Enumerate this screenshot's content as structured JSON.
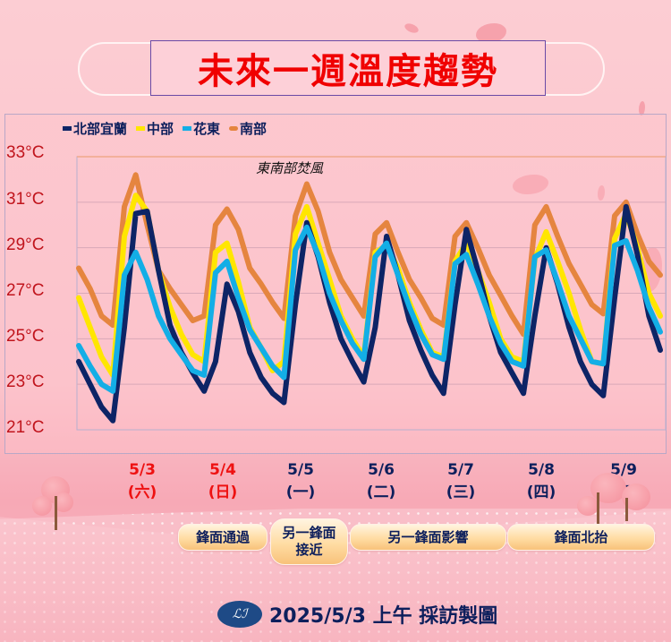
{
  "title": "未來一週溫度趨勢",
  "annotation": "東南部焚風",
  "legend": [
    {
      "label": "北部宜蘭",
      "color": "#0d2466"
    },
    {
      "label": "中部",
      "color": "#ffe600"
    },
    {
      "label": "花東",
      "color": "#13aee6"
    },
    {
      "label": "南部",
      "color": "#e5853f"
    }
  ],
  "y_ticks": [
    "33°C",
    "31°C",
    "29°C",
    "27°C",
    "25°C",
    "23°C",
    "21°C"
  ],
  "days": [
    {
      "date": "5/3",
      "weekday": "(六)",
      "color": "#ee1111"
    },
    {
      "date": "5/4",
      "weekday": "(日)",
      "color": "#ee1111"
    },
    {
      "date": "5/5",
      "weekday": "(一)",
      "color": "#0d1f5c"
    },
    {
      "date": "5/6",
      "weekday": "(二)",
      "color": "#0d1f5c"
    },
    {
      "date": "5/7",
      "weekday": "(三)",
      "color": "#0d1f5c"
    },
    {
      "date": "5/8",
      "weekday": "(四)",
      "color": "#0d1f5c"
    },
    {
      "date": "5/9",
      "weekday": "(五)",
      "color": "#0d1f5c"
    }
  ],
  "phases": [
    {
      "label": "鋒面通過"
    },
    {
      "label": "另一鋒面接近",
      "line1": "另一鋒面",
      "line2": "接近"
    },
    {
      "label": "另一鋒面影響"
    },
    {
      "label": "鋒面北抬"
    }
  ],
  "footer": {
    "logo": "ℒℐ",
    "text": "2025/5/3 上午 採訪製圖"
  },
  "chart_data": {
    "type": "line",
    "title": "未來一週溫度趨勢",
    "ylabel": "°C",
    "ylim": [
      21,
      33
    ],
    "yticks": [
      21,
      23,
      25,
      27,
      29,
      31,
      33
    ],
    "grid": true,
    "legend_position": "top-left",
    "categories": [
      "5/3(六)",
      "5/4(日)",
      "5/5(一)",
      "5/6(二)",
      "5/7(三)",
      "5/8(四)",
      "5/9(五)"
    ],
    "x_note": "3-hourly points, 8 per day (00,03,06,09,12,15,18,21)",
    "annotations": [
      {
        "text": "東南部焚風",
        "near": "5/5 peak"
      }
    ],
    "series": [
      {
        "name": "北部宜蘭",
        "color": "#0d2466",
        "values": [
          24.0,
          23.0,
          22.0,
          21.4,
          25.5,
          30.5,
          30.6,
          28.0,
          25.6,
          24.4,
          23.5,
          22.7,
          24.0,
          27.4,
          26.2,
          24.4,
          23.3,
          22.6,
          22.2,
          26.5,
          30.1,
          28.6,
          26.6,
          25.0,
          24.0,
          23.1,
          25.5,
          29.5,
          27.8,
          25.8,
          24.5,
          23.4,
          22.6,
          26.5,
          29.8,
          28.0,
          26.0,
          24.4,
          23.5,
          22.6,
          26.0,
          29.0,
          27.4,
          25.5,
          24.0,
          23.0,
          22.5,
          26.8,
          30.8,
          28.7,
          26.0,
          24.5
        ]
      },
      {
        "name": "中部",
        "color": "#ffe600",
        "values": [
          26.8,
          25.5,
          24.2,
          23.4,
          29.5,
          31.3,
          30.6,
          28.0,
          26.4,
          25.2,
          24.3,
          24.0,
          28.8,
          29.2,
          27.5,
          25.5,
          24.6,
          23.6,
          24.0,
          29.6,
          30.8,
          29.2,
          27.6,
          26.0,
          25.0,
          24.2,
          28.8,
          29.1,
          28.1,
          26.6,
          25.4,
          24.4,
          24.2,
          28.4,
          29.2,
          28.0,
          26.6,
          25.0,
          24.2,
          24.0,
          28.5,
          29.7,
          28.4,
          27.0,
          25.4,
          24.0,
          23.9,
          29.4,
          30.5,
          29.0,
          27.0,
          26.0
        ]
      },
      {
        "name": "花東",
        "color": "#13aee6",
        "values": [
          24.7,
          23.8,
          23.0,
          22.7,
          27.8,
          28.8,
          27.6,
          26.0,
          25.0,
          24.3,
          23.6,
          23.4,
          27.9,
          28.4,
          26.8,
          25.4,
          24.6,
          23.8,
          23.3,
          28.9,
          29.9,
          28.7,
          27.0,
          25.8,
          24.8,
          24.1,
          28.6,
          29.2,
          27.8,
          26.4,
          25.2,
          24.3,
          24.1,
          28.3,
          28.7,
          27.4,
          26.0,
          24.8,
          24.0,
          23.8,
          28.6,
          28.9,
          27.5,
          26.0,
          25.0,
          24.0,
          23.9,
          29.1,
          29.3,
          28.0,
          26.4,
          25.3
        ]
      },
      {
        "name": "南部",
        "color": "#e5853f",
        "values": [
          28.1,
          27.2,
          26.0,
          25.6,
          30.8,
          32.2,
          30.0,
          28.0,
          27.2,
          26.5,
          25.8,
          26.0,
          30.0,
          30.7,
          29.8,
          28.1,
          27.4,
          26.6,
          25.9,
          30.4,
          31.8,
          30.6,
          28.8,
          27.6,
          26.8,
          26.0,
          29.6,
          30.1,
          28.8,
          27.6,
          26.8,
          25.9,
          25.6,
          29.5,
          30.1,
          29.0,
          27.8,
          26.9,
          26.0,
          25.2,
          30.0,
          30.8,
          29.5,
          28.3,
          27.4,
          26.5,
          26.1,
          30.4,
          31.0,
          29.6,
          28.4,
          27.8
        ]
      }
    ]
  }
}
